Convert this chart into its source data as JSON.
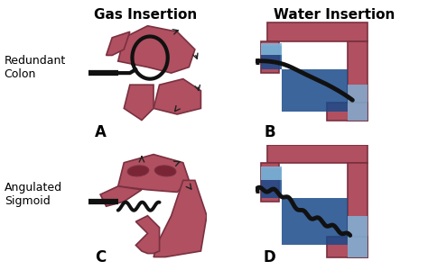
{
  "title_left": "Gas Insertion",
  "title_right": "Water Insertion",
  "label_top_left": "Redundant\nColon",
  "label_bottom_left": "Angulated\nSigmoid",
  "panel_labels": [
    "A",
    "B",
    "C",
    "D"
  ],
  "background_color": "#ffffff",
  "colon_color": "#b05060",
  "colon_edge_color": "#7a3040",
  "water_color_light": "#7fb4d8",
  "water_color_dark": "#1a4a8a",
  "scope_color": "#111111",
  "title_fontsize": 11,
  "label_fontsize": 9,
  "panel_label_fontsize": 12,
  "arrow_color": "#222222"
}
